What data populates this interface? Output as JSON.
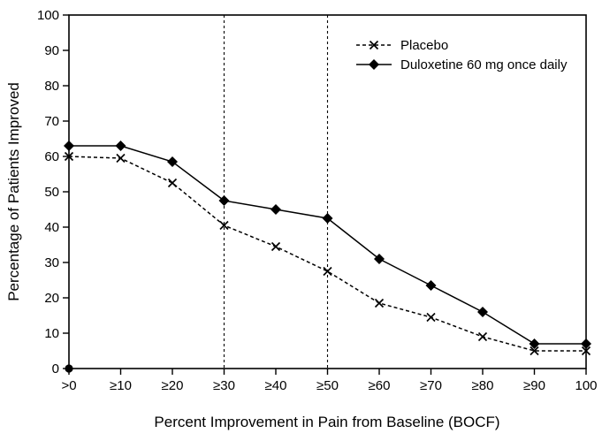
{
  "figure": {
    "background_color": "#ffffff",
    "axis_color": "#000000",
    "text_color": "#000000"
  },
  "chart_data": {
    "type": "line",
    "title": "",
    "xlabel": "Percent Improvement in Pain from Baseline (BOCF)",
    "ylabel": "Percentage of Patients Improved",
    "categories": [
      ">0",
      "≥10",
      "≥20",
      "≥30",
      "≥40",
      "≥50",
      "≥60",
      "≥70",
      "≥80",
      "≥90",
      "100"
    ],
    "ylim": [
      0,
      100
    ],
    "ytick_step": 10,
    "grid": false,
    "legend_position": "top-right-inside",
    "reference_lines_x": [
      "≥30",
      "≥50"
    ],
    "origin_marker": {
      "category": ">0",
      "value": 0,
      "shape": "filled-circle"
    },
    "series": [
      {
        "name": "Placebo",
        "marker": "x",
        "line_style": "dashed",
        "color": "#000000",
        "values": [
          60,
          59.5,
          52.5,
          40.5,
          34.5,
          27.5,
          18.5,
          14.5,
          9,
          5,
          5
        ]
      },
      {
        "name": "Duloxetine 60 mg once daily",
        "marker": "diamond",
        "line_style": "solid",
        "color": "#000000",
        "values": [
          63,
          63,
          58.5,
          47.5,
          45,
          42.5,
          31,
          23.5,
          16,
          7,
          7
        ]
      }
    ]
  }
}
